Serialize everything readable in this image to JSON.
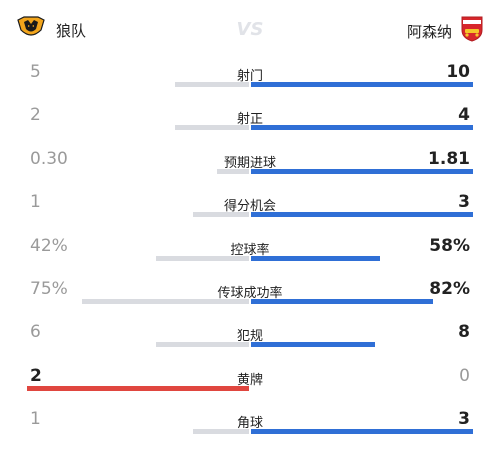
{
  "header": {
    "home_team": "狼队",
    "away_team": "阿森纳",
    "vs": "VS",
    "home_logo_icon": "wolves-crest-icon",
    "away_logo_icon": "arsenal-crest-icon"
  },
  "colors": {
    "home_win": "#e0463f",
    "home_lose": "#d9dbe0",
    "away_win": "#2f6fd6",
    "away_lose": "#d9dbe0"
  },
  "stats": [
    {
      "label": "射门",
      "home": "5",
      "away": "10",
      "home_frac": 0.333,
      "away_frac": 1.0,
      "winner": "away"
    },
    {
      "label": "射正",
      "home": "2",
      "away": "4",
      "home_frac": 0.333,
      "away_frac": 1.0,
      "winner": "away"
    },
    {
      "label": "预期进球",
      "home": "0.30",
      "away": "1.81",
      "home_frac": 0.142,
      "away_frac": 1.0,
      "winner": "away"
    },
    {
      "label": "得分机会",
      "home": "1",
      "away": "3",
      "home_frac": 0.25,
      "away_frac": 1.0,
      "winner": "away"
    },
    {
      "label": "控球率",
      "home": "42%",
      "away": "58%",
      "home_frac": 0.42,
      "away_frac": 0.58,
      "winner": "away"
    },
    {
      "label": "传球成功率",
      "home": "75%",
      "away": "82%",
      "home_frac": 0.75,
      "away_frac": 0.82,
      "winner": "away"
    },
    {
      "label": "犯规",
      "home": "6",
      "away": "8",
      "home_frac": 0.42,
      "away_frac": 0.56,
      "winner": "away"
    },
    {
      "label": "黄牌",
      "home": "2",
      "away": "0",
      "home_frac": 1.0,
      "away_frac": 0,
      "winner": "home"
    },
    {
      "label": "角球",
      "home": "1",
      "away": "3",
      "home_frac": 0.25,
      "away_frac": 1.0,
      "winner": "away"
    }
  ]
}
